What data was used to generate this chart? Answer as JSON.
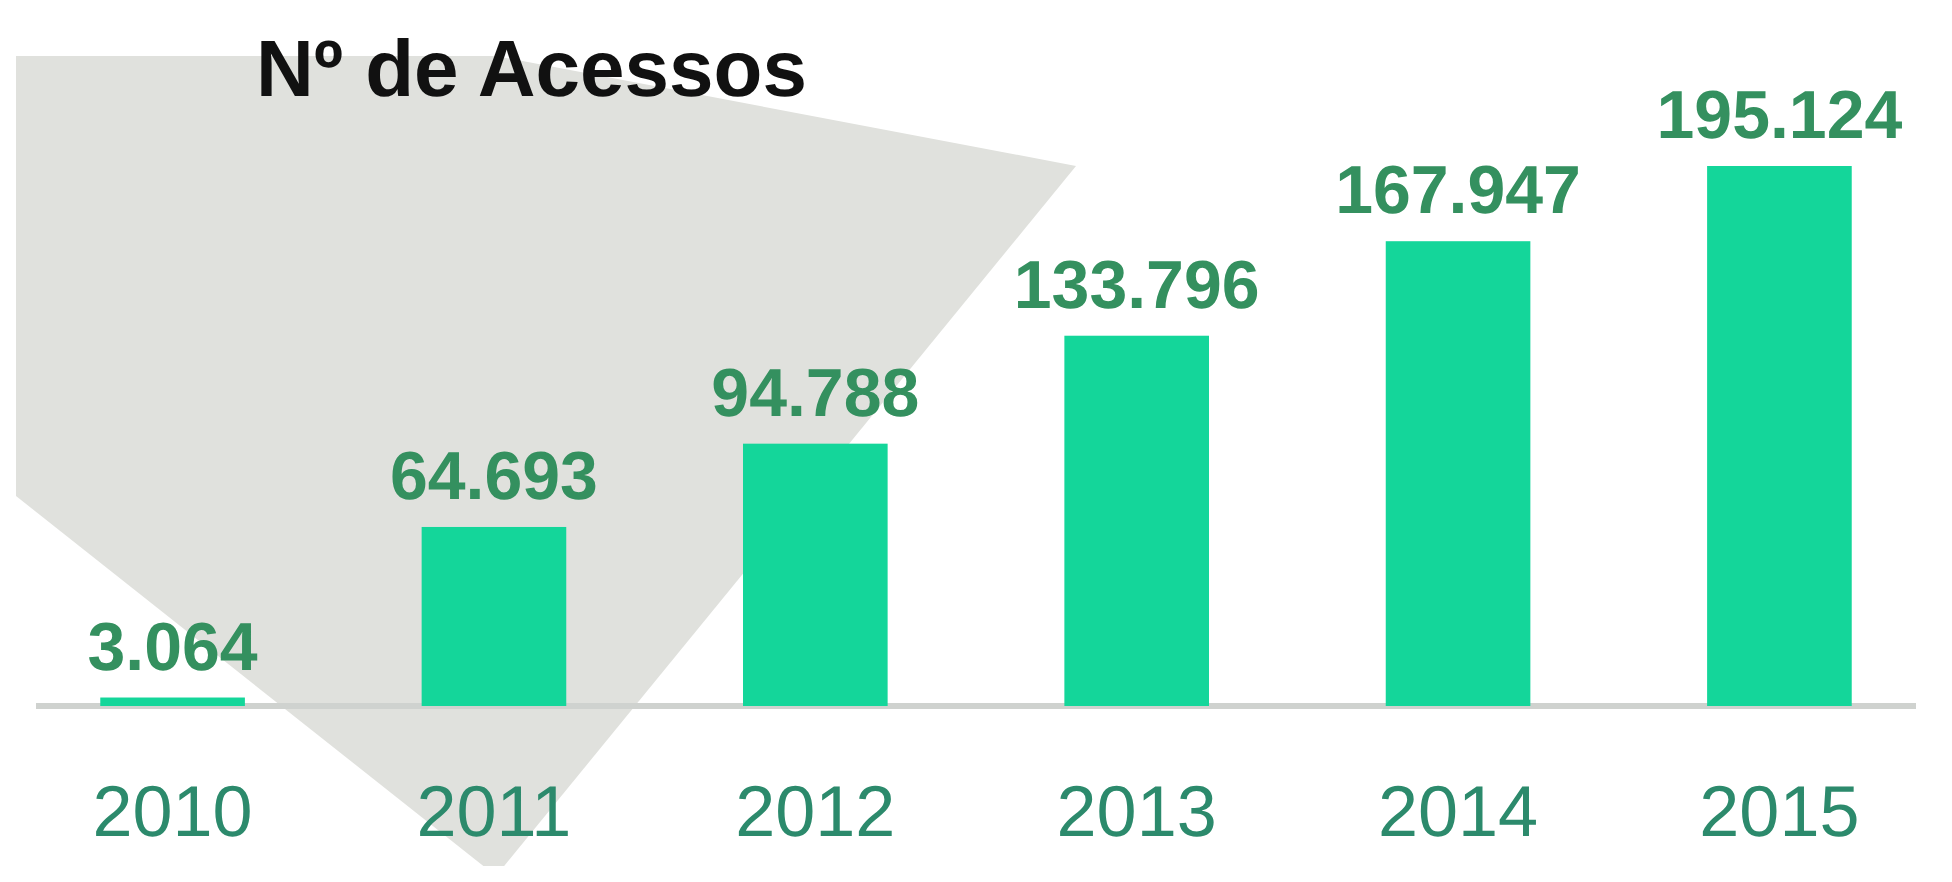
{
  "chart_data": {
    "type": "bar",
    "title": "Nº de Acessos",
    "categories": [
      "2010",
      "2011",
      "2012",
      "2013",
      "2014",
      "2015"
    ],
    "values": [
      3064,
      64693,
      94788,
      133796,
      167947,
      195124
    ],
    "value_labels": [
      "3.064",
      "64.693",
      "94.788",
      "133.796",
      "167.947",
      "195.124"
    ],
    "color": "#14d69a"
  }
}
